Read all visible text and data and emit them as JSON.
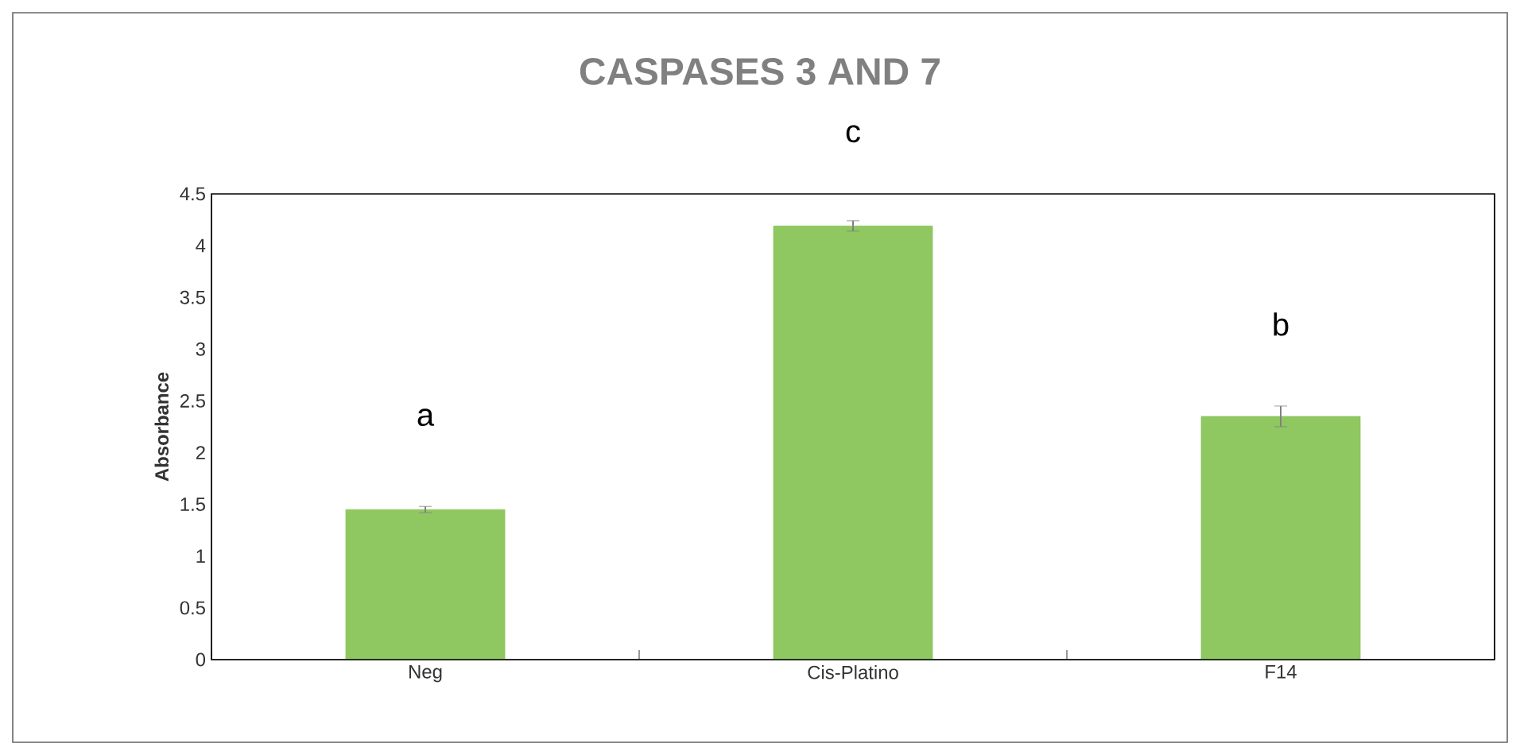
{
  "chart_data": {
    "type": "bar",
    "title": "CASPASES 3 AND 7",
    "ylabel": "Absorbance",
    "categories": [
      "Neg",
      "Cis-Platino",
      "F14"
    ],
    "values": [
      1.45,
      4.19,
      2.35
    ],
    "errors": [
      0.03,
      0.05,
      0.1
    ],
    "color": "#8fc760",
    "ylim": [
      0,
      4.5
    ],
    "yticks": [
      0,
      0.5,
      1,
      1.5,
      2,
      2.5,
      3,
      3.5,
      4,
      4.5
    ],
    "annotations": [
      "a",
      "c",
      "b"
    ]
  }
}
